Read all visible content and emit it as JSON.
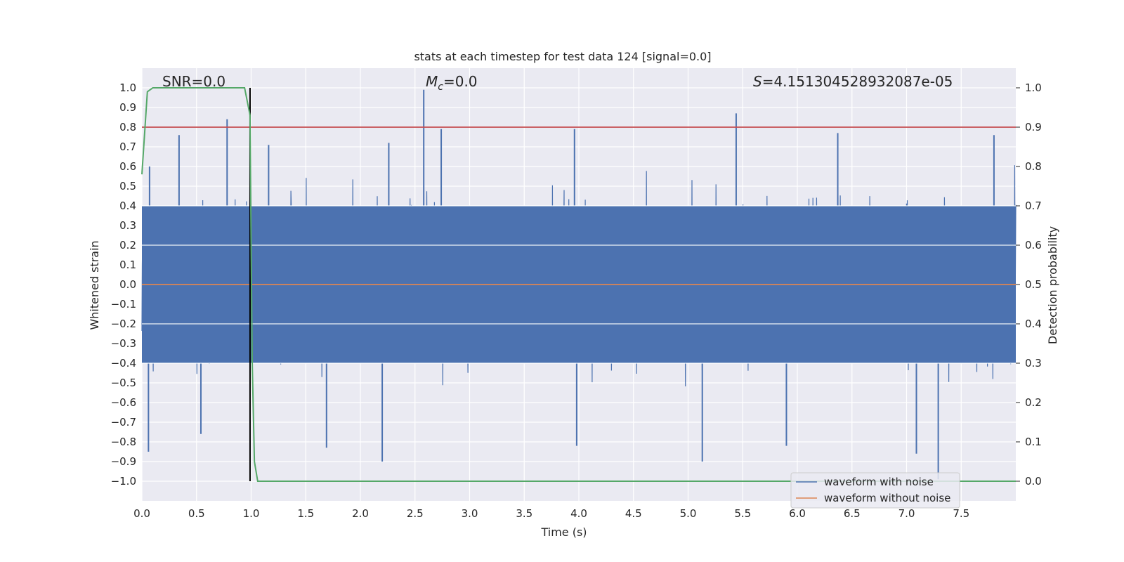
{
  "chart_data": {
    "type": "line",
    "title": "stats at each timestep for test data 124 [signal=0.0]",
    "xlabel": "Time (s)",
    "ylabel": "Whitened strain",
    "y2label": "Detection probability",
    "xlim": [
      0.0,
      8.0
    ],
    "ylim": [
      -1.1,
      1.1
    ],
    "y2lim": [
      -0.05,
      1.05
    ],
    "x_ticks": [
      "0.0",
      "0.5",
      "1.0",
      "1.5",
      "2.0",
      "2.5",
      "3.0",
      "3.5",
      "4.0",
      "4.5",
      "5.0",
      "5.5",
      "6.0",
      "6.5",
      "7.0",
      "7.5"
    ],
    "y_ticks": [
      "1.0",
      "0.9",
      "0.8",
      "0.7",
      "0.6",
      "0.5",
      "0.4",
      "0.3",
      "0.2",
      "0.1",
      "0.0",
      "−0.1",
      "−0.2",
      "−0.3",
      "−0.4",
      "−0.5",
      "−0.6",
      "−0.7",
      "−0.8",
      "−0.9",
      "−1.0"
    ],
    "y2_ticks": [
      "1.0",
      "0.9",
      "0.8",
      "0.7",
      "0.6",
      "0.5",
      "0.4",
      "0.3",
      "0.2",
      "0.1",
      "0.0"
    ],
    "grid": true,
    "annotations": {
      "snr": "SNR=0.0",
      "mc_var": "M",
      "mc_sub": "c",
      "mc_val": "=0.0",
      "s_var": "S",
      "s_val": "=4.151304528932087e-05"
    },
    "series": [
      {
        "name": "waveform with noise",
        "color": "#4c72b0",
        "description_of_values": "dense noise; typical envelope about -0.45 to +0.45",
        "envelope_max": 0.4,
        "peaks": [
          {
            "x": 0.07,
            "y": 0.6
          },
          {
            "x": 0.34,
            "y": 0.76
          },
          {
            "x": 0.78,
            "y": 0.84
          },
          {
            "x": 1.16,
            "y": 0.71
          },
          {
            "x": 2.26,
            "y": 0.72
          },
          {
            "x": 2.58,
            "y": 0.99
          },
          {
            "x": 2.74,
            "y": 0.79
          },
          {
            "x": 3.96,
            "y": 0.79
          },
          {
            "x": 5.44,
            "y": 0.87
          },
          {
            "x": 6.37,
            "y": 0.77
          },
          {
            "x": 7.8,
            "y": 0.76
          }
        ],
        "troughs": [
          {
            "x": 0.06,
            "y": -0.85
          },
          {
            "x": 0.54,
            "y": -0.76
          },
          {
            "x": 1.69,
            "y": -0.83
          },
          {
            "x": 2.2,
            "y": -0.9
          },
          {
            "x": 3.98,
            "y": -0.82
          },
          {
            "x": 5.13,
            "y": -0.9
          },
          {
            "x": 5.9,
            "y": -0.82
          },
          {
            "x": 7.09,
            "y": -0.86
          },
          {
            "x": 7.29,
            "y": -0.99
          }
        ]
      },
      {
        "name": "waveform without noise",
        "color": "#dd8452",
        "x": [
          0.0,
          8.0
        ],
        "y": [
          0.0,
          0.0
        ]
      },
      {
        "name": "detection probability",
        "axis": "right",
        "color": "#55a868",
        "x": [
          0.0,
          0.05,
          0.1,
          0.15,
          0.5,
          0.94,
          0.99,
          1.0,
          1.01,
          1.03,
          1.06,
          1.2,
          8.0
        ],
        "y": [
          0.78,
          0.99,
          1.0,
          1.0,
          1.0,
          1.0,
          0.93,
          0.6,
          0.3,
          0.05,
          0.0,
          0.0,
          0.0
        ]
      }
    ],
    "threshold_line": {
      "axis": "right",
      "y": 0.9,
      "color": "#c44e52"
    },
    "marker_line": {
      "x": 0.99,
      "color": "#000000"
    },
    "legend_position": "lower-right"
  }
}
